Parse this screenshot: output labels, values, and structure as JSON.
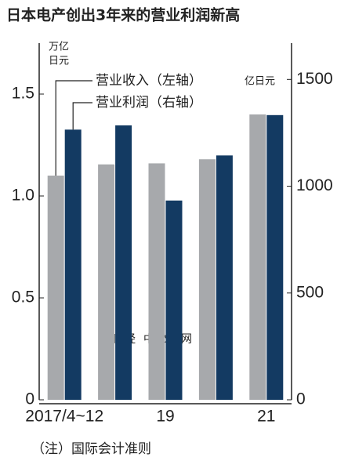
{
  "chart_data": {
    "type": "bar",
    "title": "日本电产创出3年来的营业利润新高",
    "y_label_lines": [
      "万亿",
      "日元"
    ],
    "y2_label": "亿日元",
    "categories": [
      "2017/4~12",
      null,
      "19",
      null,
      "21"
    ],
    "series": [
      {
        "name": "营业收入（左轴）",
        "color": "#a7a9ac",
        "values": [
          1.1,
          1.155,
          1.16,
          1.18,
          1.4
        ]
      },
      {
        "name": "营业利润（右轴）",
        "color": "#133a62",
        "axis": "y2",
        "values": [
          1265,
          1285,
          933,
          1144,
          1333
        ]
      }
    ],
    "ylim": [
      0,
      1.75
    ],
    "yticks": [
      0,
      0.5,
      {
        "value": 1,
        "label": "1.0"
      },
      1.5
    ],
    "y2lim": [
      0,
      1670
    ],
    "y2ticks": [
      0,
      500,
      1000,
      1500
    ],
    "note": "（注）国际会计准则",
    "watermark": "日经中文网"
  }
}
